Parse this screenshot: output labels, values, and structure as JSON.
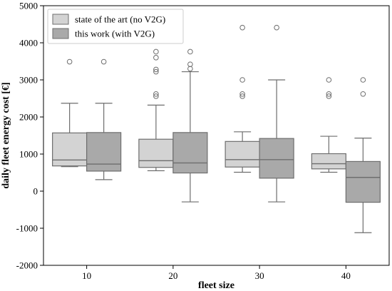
{
  "chart_data": {
    "type": "boxplot",
    "xlabel": "fleet size",
    "ylabel": "daily fleet energy cost [€]",
    "ylim": [
      -2000,
      5000
    ],
    "yticks": [
      -2000,
      -1000,
      0,
      1000,
      2000,
      3000,
      4000,
      5000
    ],
    "categories": [
      "10",
      "20",
      "30",
      "40"
    ],
    "grid": false,
    "legend_position": "top-left",
    "series": [
      {
        "name": "state of the art (no V2G)",
        "color": "#d3d3d3",
        "boxes": [
          {
            "whisker_low": 660,
            "q1": 680,
            "median": 840,
            "q3": 1570,
            "whisker_high": 2370,
            "outliers": [
              3490
            ]
          },
          {
            "whisker_low": 550,
            "q1": 640,
            "median": 820,
            "q3": 1400,
            "whisker_high": 2320,
            "outliers": [
              2560,
              2620,
              3220,
              3280,
              3600,
              3760
            ]
          },
          {
            "whisker_low": 510,
            "q1": 650,
            "median": 850,
            "q3": 1340,
            "whisker_high": 1600,
            "outliers": [
              2560,
              2620,
              3000,
              4410
            ]
          },
          {
            "whisker_low": 510,
            "q1": 600,
            "median": 740,
            "q3": 1010,
            "whisker_high": 1480,
            "outliers": [
              2560,
              2620,
              3000
            ]
          }
        ]
      },
      {
        "name": "this work (with V2G)",
        "color": "#a9a9a9",
        "boxes": [
          {
            "whisker_low": 310,
            "q1": 540,
            "median": 730,
            "q3": 1580,
            "whisker_high": 2370,
            "outliers": [
              3490
            ]
          },
          {
            "whisker_low": -290,
            "q1": 490,
            "median": 760,
            "q3": 1580,
            "whisker_high": 3220,
            "outliers": [
              3300,
              3420,
              3760
            ]
          },
          {
            "whisker_low": -290,
            "q1": 350,
            "median": 850,
            "q3": 1420,
            "whisker_high": 3000,
            "outliers": [
              4410
            ]
          },
          {
            "whisker_low": -1120,
            "q1": -300,
            "median": 370,
            "q3": 800,
            "whisker_high": 1430,
            "outliers": [
              2620,
              3000
            ]
          }
        ]
      }
    ]
  }
}
